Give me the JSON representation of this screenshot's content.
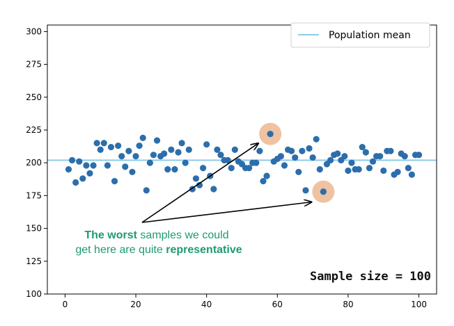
{
  "chart_data": {
    "type": "scatter",
    "xlim": [
      -5,
      105
    ],
    "ylim": [
      100,
      305
    ],
    "x_ticks": [
      0,
      20,
      40,
      60,
      80,
      100
    ],
    "y_ticks": [
      100,
      125,
      150,
      175,
      200,
      225,
      250,
      275,
      300
    ],
    "grid": false,
    "legend_position": "top-right",
    "reference_line": {
      "label": "Population mean",
      "y": 202,
      "color": "#8ecae6"
    },
    "series": [
      {
        "color": "#2c6eab",
        "x": [
          1,
          2,
          3,
          4,
          5,
          6,
          7,
          8,
          9,
          10,
          11,
          12,
          13,
          14,
          15,
          16,
          17,
          18,
          19,
          20,
          21,
          22,
          23,
          24,
          25,
          26,
          27,
          28,
          29,
          30,
          31,
          32,
          33,
          34,
          35,
          36,
          37,
          38,
          39,
          40,
          41,
          42,
          43,
          44,
          45,
          46,
          47,
          48,
          49,
          50,
          51,
          52,
          53,
          54,
          55,
          56,
          57,
          58,
          59,
          60,
          61,
          62,
          63,
          64,
          65,
          66,
          67,
          68,
          69,
          70,
          71,
          72,
          73,
          74,
          75,
          76,
          77,
          78,
          79,
          80,
          81,
          82,
          83,
          84,
          85,
          86,
          87,
          88,
          89,
          90,
          91,
          92,
          93,
          94,
          95,
          96,
          97,
          98,
          99,
          100
        ],
        "y": [
          195,
          202,
          185,
          201,
          188,
          198,
          192,
          198,
          215,
          210,
          215,
          198,
          212,
          186,
          213,
          205,
          197,
          209,
          193,
          205,
          213,
          219,
          179,
          200,
          206,
          217,
          205,
          207,
          195,
          210,
          195,
          208,
          215,
          200,
          210,
          180,
          188,
          183,
          196,
          214,
          190,
          180,
          210,
          206,
          202,
          202,
          196,
          210,
          201,
          199,
          196,
          196,
          200,
          200,
          209,
          186,
          190,
          222,
          201,
          203,
          205,
          198,
          210,
          209,
          204,
          193,
          209,
          179,
          211,
          204,
          218,
          195,
          178,
          199,
          202,
          206,
          207,
          202,
          205,
          194,
          200,
          195,
          195,
          212,
          208,
          196,
          201,
          205,
          205,
          194,
          209,
          209,
          191,
          193,
          207,
          205,
          196,
          191,
          206,
          206
        ]
      }
    ],
    "highlighted_points": [
      {
        "x": 58,
        "y": 222,
        "color": "#efc2a2"
      },
      {
        "x": 73,
        "y": 178,
        "color": "#efc2a2"
      }
    ],
    "annotations": {
      "note": {
        "line1_bold": "The worst",
        "line1_rest": " samples we could",
        "line2_rest": "get here are quite ",
        "line2_bold": "representative",
        "color": "#1e9b6e"
      },
      "sample_size": "Sample size = 100"
    }
  }
}
